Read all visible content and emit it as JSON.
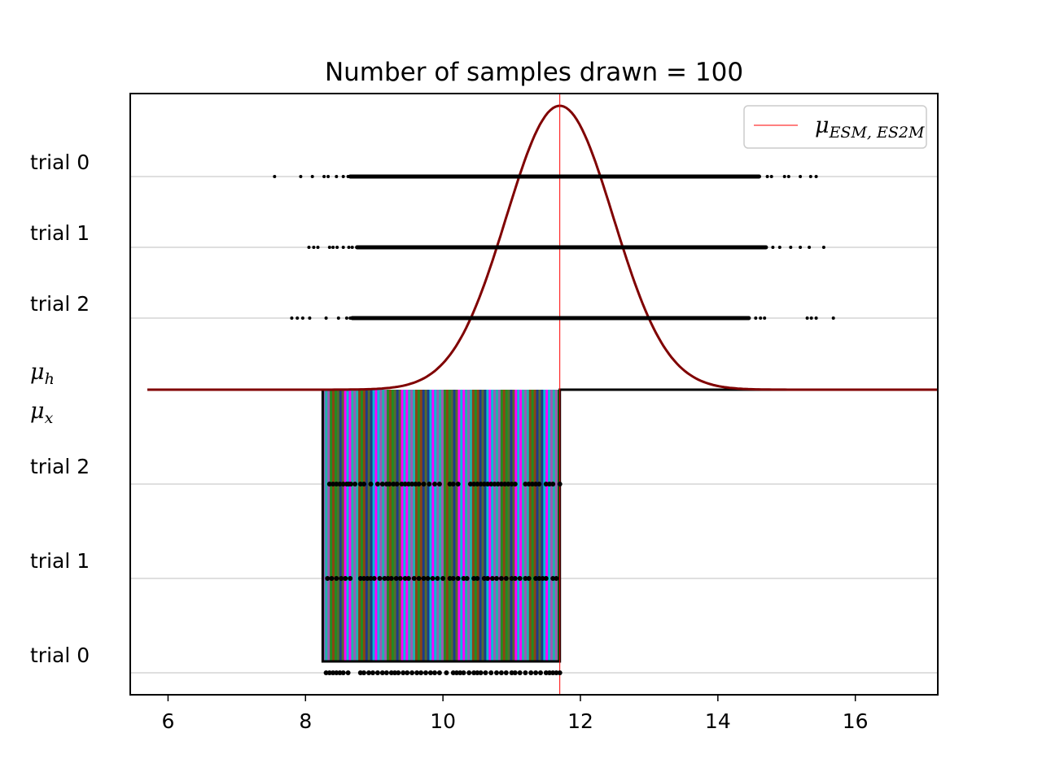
{
  "chart_data": {
    "type": "scatter",
    "title": "Number of samples drawn = 100",
    "xlabel": "",
    "ylabel": "",
    "xlim": [
      5.45,
      17.2
    ],
    "x_ticks": [
      6,
      8,
      10,
      12,
      14,
      16
    ],
    "x_tick_labels": [
      "6",
      "8",
      "10",
      "12",
      "14",
      "16"
    ],
    "grid": "horizontal lines at each trial row",
    "legend": {
      "placement": "upper-right",
      "entries": [
        {
          "label_base": "μ",
          "label_sub": "ESM, ES2M",
          "color": "#ff0000"
        }
      ]
    },
    "mean_line": {
      "x": 11.7,
      "color": "#ff0000"
    },
    "top_rows": [
      "trial 0",
      "trial 1",
      "trial 2"
    ],
    "bottom_rows": [
      "trial 2",
      "trial 1",
      "trial 0"
    ],
    "divider_labels": {
      "upper": {
        "base": "μ",
        "sub": "h"
      },
      "lower": {
        "base": "μ",
        "sub": "x"
      }
    },
    "posterior_curve": {
      "mean": 11.7,
      "sd": 0.78,
      "color": "#800000"
    },
    "uniform_window": {
      "x_min": 8.25,
      "x_max": 11.7
    },
    "posterior_samples": [
      {
        "trial": "trial 0",
        "outliers": [
          7.55,
          7.93,
          8.1,
          8.27,
          8.33,
          8.45,
          8.55,
          8.62,
          14.72,
          14.78,
          14.97,
          15.03,
          15.2,
          15.35,
          15.43
        ],
        "dense_range": [
          8.65,
          14.6
        ]
      },
      {
        "trial": "trial 1",
        "outliers": [
          8.05,
          8.12,
          8.18,
          8.35,
          8.4,
          8.46,
          8.55,
          8.63,
          8.68,
          14.8,
          14.9,
          15.06,
          15.2,
          15.33,
          15.54
        ],
        "dense_range": [
          8.75,
          14.7
        ]
      },
      {
        "trial": "trial 2",
        "outliers": [
          7.8,
          7.88,
          7.96,
          8.06,
          8.3,
          8.48,
          8.6,
          8.65,
          14.55,
          14.62,
          14.68,
          15.3,
          15.36,
          15.43,
          15.68
        ],
        "dense_range": [
          8.68,
          14.45
        ]
      }
    ],
    "data_samples": [
      {
        "trial": "trial 2",
        "x": [
          8.35,
          8.4,
          8.45,
          8.5,
          8.55,
          8.6,
          8.63,
          8.66,
          8.72,
          8.8,
          8.85,
          8.95,
          9.05,
          9.12,
          9.18,
          9.22,
          9.28,
          9.33,
          9.4,
          9.45,
          9.5,
          9.55,
          9.6,
          9.65,
          9.72,
          9.8,
          9.88,
          9.95,
          10.1,
          10.15,
          10.22,
          10.4,
          10.45,
          10.5,
          10.55,
          10.6,
          10.65,
          10.7,
          10.75,
          10.8,
          10.85,
          10.9,
          10.95,
          11.0,
          11.05,
          11.2,
          11.25,
          11.3,
          11.35,
          11.4,
          11.5,
          11.55,
          11.6,
          11.7
        ]
      },
      {
        "trial": "trial 1",
        "x": [
          8.32,
          8.38,
          8.45,
          8.52,
          8.58,
          8.65,
          8.8,
          8.85,
          8.9,
          8.95,
          9.0,
          9.08,
          9.15,
          9.2,
          9.25,
          9.32,
          9.38,
          9.45,
          9.5,
          9.58,
          9.65,
          9.72,
          9.78,
          9.85,
          9.92,
          10.0,
          10.1,
          10.15,
          10.22,
          10.3,
          10.35,
          10.45,
          10.5,
          10.6,
          10.65,
          10.72,
          10.78,
          10.85,
          10.92,
          11.0,
          11.05,
          11.12,
          11.2,
          11.25,
          11.35,
          11.4,
          11.45,
          11.5,
          11.6,
          11.65
        ]
      },
      {
        "trial": "trial 0",
        "x": [
          8.3,
          8.35,
          8.4,
          8.45,
          8.5,
          8.55,
          8.62,
          8.8,
          8.85,
          8.92,
          8.98,
          9.05,
          9.12,
          9.18,
          9.25,
          9.3,
          9.35,
          9.42,
          9.48,
          9.55,
          9.62,
          9.68,
          9.75,
          9.82,
          9.88,
          9.95,
          10.05,
          10.15,
          10.2,
          10.25,
          10.3,
          10.38,
          10.45,
          10.5,
          10.55,
          10.62,
          10.7,
          10.78,
          10.85,
          10.92,
          11.0,
          11.05,
          11.12,
          11.2,
          11.28,
          11.35,
          11.42,
          11.5,
          11.55,
          11.6,
          11.65,
          11.7
        ]
      }
    ],
    "stripe_colors": [
      "#9b59b6",
      "#2ecc71",
      "#f1c40f",
      "#00bcd4",
      "#ff69b4",
      "#6b8e23",
      "#1e3a8a",
      "#c0c0c0",
      "#ff8c00",
      "#8b4513",
      "#7fff00",
      "#da70d6",
      "#20b2aa",
      "#000000",
      "#bdb76b",
      "#ff00ff",
      "#4682b4",
      "#ffd700",
      "#556b2f",
      "#00ffff",
      "#ffb6c1",
      "#228b22",
      "#9370db",
      "#f4a460"
    ]
  }
}
